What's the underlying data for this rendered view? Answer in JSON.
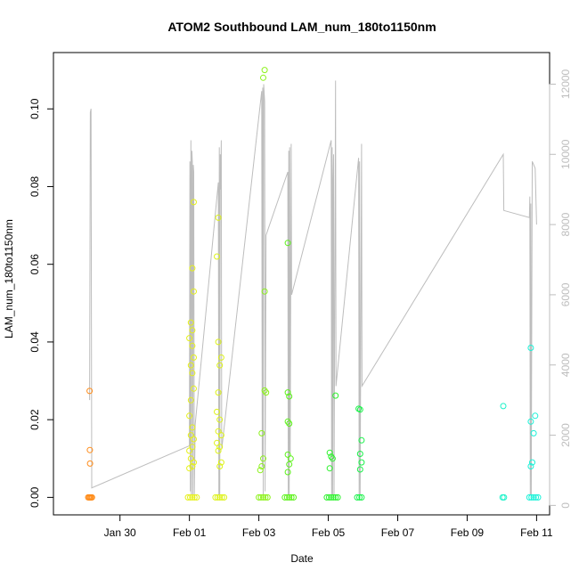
{
  "chart_data": {
    "type": "scatter",
    "title": "ATOM2 Southbound LAM_num_180to1150nm",
    "xlabel": "Date",
    "ylabel": "LAM_num_180to1150nm",
    "x_type": "date",
    "xlim": [
      "2023-01-28T02:00",
      "2023-02-11T09:00"
    ],
    "ylim": [
      -0.0045,
      0.1145
    ],
    "y2lim": [
      -270,
      12900
    ],
    "x_ticks": [
      {
        "label": "Jan 30",
        "value": "2023-01-30"
      },
      {
        "label": "Feb 01",
        "value": "2023-02-01"
      },
      {
        "label": "Feb 03",
        "value": "2023-02-03"
      },
      {
        "label": "Feb 05",
        "value": "2023-02-05"
      },
      {
        "label": "Feb 07",
        "value": "2023-02-07"
      },
      {
        "label": "Feb 09",
        "value": "2023-02-09"
      },
      {
        "label": "Feb 11",
        "value": "2023-02-11"
      }
    ],
    "y_ticks": [
      "0.00",
      "0.02",
      "0.04",
      "0.06",
      "0.08",
      "0.10"
    ],
    "y2_ticks": [
      "0",
      "2000",
      "4000",
      "6000",
      "8000",
      "10000",
      "12000"
    ],
    "grid": false,
    "legend": "none",
    "series": [
      {
        "color": "#FF8C1A",
        "axis": "left",
        "points": [
          [
            "2023-01-29T03:00",
            0.0274
          ],
          [
            "2023-01-29T03:10",
            0.0122
          ],
          [
            "2023-01-29T03:20",
            0.0087
          ],
          [
            "2023-01-29T02:00",
            0
          ],
          [
            "2023-01-29T02:40",
            0
          ],
          [
            "2023-01-29T03:20",
            0
          ],
          [
            "2023-01-29T04:00",
            0
          ],
          [
            "2023-01-29T04:40",
            0
          ]
        ]
      },
      {
        "color": "#E5F01A",
        "axis": "left",
        "points": [
          [
            "2023-02-01T03:00",
            0.076
          ],
          [
            "2023-02-01T02:00",
            0.059
          ],
          [
            "2023-02-01T03:00",
            0.053
          ],
          [
            "2023-02-01T01:00",
            0.045
          ],
          [
            "2023-02-01T02:00",
            0.043
          ],
          [
            "2023-02-01T00:00",
            0.041
          ],
          [
            "2023-02-01T02:00",
            0.039
          ],
          [
            "2023-02-01T03:00",
            0.036
          ],
          [
            "2023-02-01T01:00",
            0.034
          ],
          [
            "2023-02-01T02:00",
            0.032
          ],
          [
            "2023-02-01T03:00",
            0.028
          ],
          [
            "2023-02-01T01:00",
            0.025
          ],
          [
            "2023-02-01T00:00",
            0.021
          ],
          [
            "2023-02-01T02:00",
            0.018
          ],
          [
            "2023-02-01T01:00",
            0.016
          ],
          [
            "2023-02-01T03:00",
            0.015
          ],
          [
            "2023-02-01T02:00",
            0.013
          ],
          [
            "2023-02-01T00:00",
            0.012
          ],
          [
            "2023-02-01T01:00",
            0.01
          ],
          [
            "2023-02-01T03:00",
            0.009
          ],
          [
            "2023-02-01T02:00",
            0.008
          ],
          [
            "2023-02-01T00:00",
            0.0075
          ],
          [
            "2023-01-31T23:00",
            0
          ],
          [
            "2023-02-01T00:30",
            0
          ],
          [
            "2023-02-01T02:00",
            0
          ],
          [
            "2023-02-01T03:30",
            0
          ],
          [
            "2023-02-01T05:00",
            0
          ]
        ]
      },
      {
        "color": "#DDF21A",
        "axis": "left",
        "points": [
          [
            "2023-02-01T20:00",
            0.072
          ],
          [
            "2023-02-01T19:00",
            0.062
          ],
          [
            "2023-02-01T20:00",
            0.04
          ],
          [
            "2023-02-01T22:00",
            0.036
          ],
          [
            "2023-02-01T21:00",
            0.034
          ],
          [
            "2023-02-01T20:00",
            0.027
          ],
          [
            "2023-02-01T19:00",
            0.022
          ],
          [
            "2023-02-01T21:00",
            0.02
          ],
          [
            "2023-02-01T20:00",
            0.017
          ],
          [
            "2023-02-01T22:00",
            0.016
          ],
          [
            "2023-02-01T19:00",
            0.014
          ],
          [
            "2023-02-01T21:00",
            0.013
          ],
          [
            "2023-02-01T20:00",
            0.012
          ],
          [
            "2023-02-01T22:00",
            0.009
          ],
          [
            "2023-02-01T21:00",
            0.008
          ],
          [
            "2023-02-01T18:00",
            0
          ],
          [
            "2023-02-01T19:30",
            0
          ],
          [
            "2023-02-01T21:00",
            0
          ],
          [
            "2023-02-01T22:30",
            0
          ],
          [
            "2023-02-02T00:00",
            0
          ]
        ]
      },
      {
        "color": "#8CF21A",
        "axis": "left",
        "points": [
          [
            "2023-02-03T04:00",
            0.11
          ],
          [
            "2023-02-03T03:00",
            0.108
          ],
          [
            "2023-02-03T04:00",
            0.053
          ],
          [
            "2023-02-03T04:00",
            0.0275
          ],
          [
            "2023-02-03T05:00",
            0.027
          ],
          [
            "2023-02-03T02:00",
            0.0165
          ],
          [
            "2023-02-03T03:00",
            0.01
          ],
          [
            "2023-02-03T02:00",
            0.008
          ],
          [
            "2023-02-03T01:00",
            0.007
          ],
          [
            "2023-02-03T00:00",
            0
          ],
          [
            "2023-02-03T01:30",
            0
          ],
          [
            "2023-02-03T03:00",
            0
          ],
          [
            "2023-02-03T04:30",
            0
          ],
          [
            "2023-02-03T06:00",
            0
          ]
        ]
      },
      {
        "color": "#5CF21A",
        "axis": "left",
        "points": [
          [
            "2023-02-03T20:00",
            0.0655
          ],
          [
            "2023-02-03T20:00",
            0.027
          ],
          [
            "2023-02-03T21:00",
            0.026
          ],
          [
            "2023-02-03T20:00",
            0.0195
          ],
          [
            "2023-02-03T21:00",
            0.019
          ],
          [
            "2023-02-03T20:00",
            0.011
          ],
          [
            "2023-02-03T22:00",
            0.01
          ],
          [
            "2023-02-03T21:00",
            0.0085
          ],
          [
            "2023-02-03T20:00",
            0.0065
          ],
          [
            "2023-02-03T18:00",
            0
          ],
          [
            "2023-02-03T19:30",
            0
          ],
          [
            "2023-02-03T21:00",
            0
          ],
          [
            "2023-02-03T22:30",
            0
          ],
          [
            "2023-02-04T00:00",
            0
          ]
        ]
      },
      {
        "color": "#2EF22E",
        "axis": "left",
        "points": [
          [
            "2023-02-05T05:00",
            0.0262
          ],
          [
            "2023-02-05T01:00",
            0.0115
          ],
          [
            "2023-02-05T02:00",
            0.0105
          ],
          [
            "2023-02-05T03:00",
            0.01
          ],
          [
            "2023-02-05T01:00",
            0.0075
          ],
          [
            "2023-02-04T23:00",
            0
          ],
          [
            "2023-02-05T00:30",
            0
          ],
          [
            "2023-02-05T02:00",
            0
          ],
          [
            "2023-02-05T03:30",
            0
          ],
          [
            "2023-02-05T05:00",
            0
          ],
          [
            "2023-02-05T06:30",
            0
          ]
        ]
      },
      {
        "color": "#1AF24A",
        "axis": "left",
        "points": [
          [
            "2023-02-05T21:00",
            0.0228
          ],
          [
            "2023-02-05T22:00",
            0.0226
          ],
          [
            "2023-02-05T23:00",
            0.0147
          ],
          [
            "2023-02-05T22:00",
            0.0112
          ],
          [
            "2023-02-05T23:00",
            0.009
          ],
          [
            "2023-02-05T22:00",
            0.0072
          ],
          [
            "2023-02-05T20:00",
            0
          ],
          [
            "2023-02-05T21:30",
            0
          ],
          [
            "2023-02-05T23:00",
            0
          ]
        ]
      },
      {
        "color": "#1AF2C8",
        "axis": "left",
        "points": [
          [
            "2023-02-10T01:00",
            0.0235
          ],
          [
            "2023-02-10T00:30",
            0
          ],
          [
            "2023-02-10T01:30",
            0
          ]
        ]
      },
      {
        "color": "#1AF2D8",
        "axis": "left",
        "points": [
          [
            "2023-02-10T20:00",
            0.0385
          ],
          [
            "2023-02-10T23:00",
            0.021
          ],
          [
            "2023-02-10T20:00",
            0.0195
          ],
          [
            "2023-02-10T22:00",
            0.0165
          ],
          [
            "2023-02-10T21:00",
            0.009
          ],
          [
            "2023-02-10T20:00",
            0.008
          ],
          [
            "2023-02-10T19:00",
            0
          ],
          [
            "2023-02-10T20:30",
            0
          ],
          [
            "2023-02-10T22:00",
            0
          ],
          [
            "2023-02-10T23:30",
            0
          ],
          [
            "2023-02-11T01:00",
            0
          ]
        ]
      },
      {
        "color": "#bdbdbd",
        "axis": "right",
        "style": "line",
        "points": [
          [
            "2023-01-29T03:00",
            3000
          ],
          [
            "2023-01-29T03:30",
            11200
          ],
          [
            "2023-01-29T04:00",
            11300
          ],
          [
            "2023-01-29T04:30",
            500
          ],
          [
            "2023-02-01T00:00",
            1700
          ],
          [
            "2023-02-01T00:20",
            9800
          ],
          [
            "2023-02-01T00:40",
            400
          ],
          [
            "2023-02-01T01:00",
            10400
          ],
          [
            "2023-02-01T01:20",
            300
          ],
          [
            "2023-02-01T01:40",
            10100
          ],
          [
            "2023-02-01T02:00",
            9800
          ],
          [
            "2023-02-01T02:20",
            300
          ],
          [
            "2023-02-01T02:40",
            9700
          ],
          [
            "2023-02-01T03:00",
            9500
          ],
          [
            "2023-02-01T03:20",
            200
          ],
          [
            "2023-02-01T04:00",
            2300
          ],
          [
            "2023-02-01T20:00",
            9200
          ],
          [
            "2023-02-01T20:20",
            300
          ],
          [
            "2023-02-01T20:40",
            10200
          ],
          [
            "2023-02-01T21:00",
            300
          ],
          [
            "2023-02-01T21:20",
            10000
          ],
          [
            "2023-02-01T21:40",
            9000
          ],
          [
            "2023-02-01T22:00",
            10400
          ],
          [
            "2023-02-01T22:20",
            1600
          ],
          [
            "2023-02-03T02:00",
            11800
          ],
          [
            "2023-02-03T02:20",
            1100
          ],
          [
            "2023-02-03T02:40",
            11900
          ],
          [
            "2023-02-03T03:00",
            300
          ],
          [
            "2023-02-03T03:20",
            12000
          ],
          [
            "2023-02-03T04:00",
            11500
          ],
          [
            "2023-02-03T04:20",
            400
          ],
          [
            "2023-02-03T05:00",
            7700
          ],
          [
            "2023-02-03T20:00",
            9500
          ],
          [
            "2023-02-03T20:20",
            300
          ],
          [
            "2023-02-03T20:40",
            10100
          ],
          [
            "2023-02-03T21:00",
            300
          ],
          [
            "2023-02-03T21:20",
            10200
          ],
          [
            "2023-02-03T21:40",
            1500
          ],
          [
            "2023-02-03T22:20",
            10300
          ],
          [
            "2023-02-03T22:40",
            6000
          ],
          [
            "2023-02-05T02:00",
            10400
          ],
          [
            "2023-02-05T02:20",
            300
          ],
          [
            "2023-02-05T02:40",
            10200
          ],
          [
            "2023-02-05T03:00",
            300
          ],
          [
            "2023-02-05T03:20",
            9300
          ],
          [
            "2023-02-05T03:40",
            10000
          ],
          [
            "2023-02-05T04:00",
            300
          ],
          [
            "2023-02-05T05:00",
            12100
          ],
          [
            "2023-02-05T05:20",
            3400
          ],
          [
            "2023-02-05T21:00",
            9900
          ],
          [
            "2023-02-05T21:20",
            300
          ],
          [
            "2023-02-05T21:40",
            9800
          ],
          [
            "2023-02-05T22:00",
            300
          ],
          [
            "2023-02-05T23:00",
            10300
          ],
          [
            "2023-02-05T23:20",
            3400
          ],
          [
            "2023-02-10T01:00",
            10000
          ],
          [
            "2023-02-10T01:20",
            8400
          ],
          [
            "2023-02-10T19:00",
            8200
          ],
          [
            "2023-02-10T19:20",
            8800
          ],
          [
            "2023-02-10T19:40",
            300
          ],
          [
            "2023-02-10T20:00",
            8600
          ],
          [
            "2023-02-10T20:20",
            300
          ],
          [
            "2023-02-10T21:00",
            9800
          ],
          [
            "2023-02-10T23:00",
            9600
          ],
          [
            "2023-02-11T00:00",
            8000
          ]
        ]
      }
    ]
  }
}
